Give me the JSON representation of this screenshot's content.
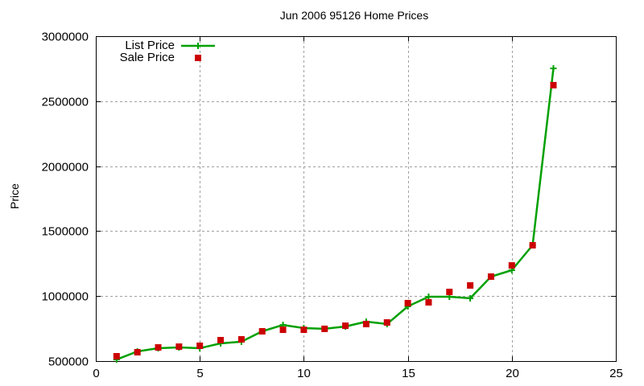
{
  "chart_data": {
    "type": "line",
    "title": "Jun 2006 95126 Home Prices",
    "xlabel": "",
    "ylabel": "Price",
    "xlim": [
      0,
      25
    ],
    "ylim": [
      500000,
      3000000
    ],
    "x_ticks": [
      "0",
      "5",
      "10",
      "15",
      "20",
      "25"
    ],
    "y_ticks": [
      "500000",
      "1000000",
      "1500000",
      "2000000",
      "2500000",
      "3000000"
    ],
    "grid": true,
    "legend_position": "top-left",
    "x": [
      1,
      2,
      3,
      4,
      5,
      6,
      7,
      8,
      9,
      10,
      11,
      12,
      13,
      14,
      15,
      16,
      17,
      18,
      19,
      20,
      21,
      22
    ],
    "series": [
      {
        "name": "List Price",
        "style": "line+cross",
        "color": "#00a000",
        "values": [
          512000,
          574000,
          599000,
          605000,
          599000,
          636000,
          649000,
          729000,
          778000,
          754000,
          748000,
          766000,
          803000,
          785000,
          921000,
          995000,
          995000,
          983000,
          1150000,
          1199000,
          1391000,
          2752000
        ]
      },
      {
        "name": "Sale Price",
        "style": "square-points",
        "color": "#cc0000",
        "values": [
          537000,
          568000,
          605000,
          611000,
          618000,
          661000,
          667000,
          729000,
          741000,
          741000,
          748000,
          772000,
          785000,
          797000,
          946000,
          952000,
          1032000,
          1082000,
          1150000,
          1236000,
          1391000,
          2623000
        ]
      }
    ]
  }
}
